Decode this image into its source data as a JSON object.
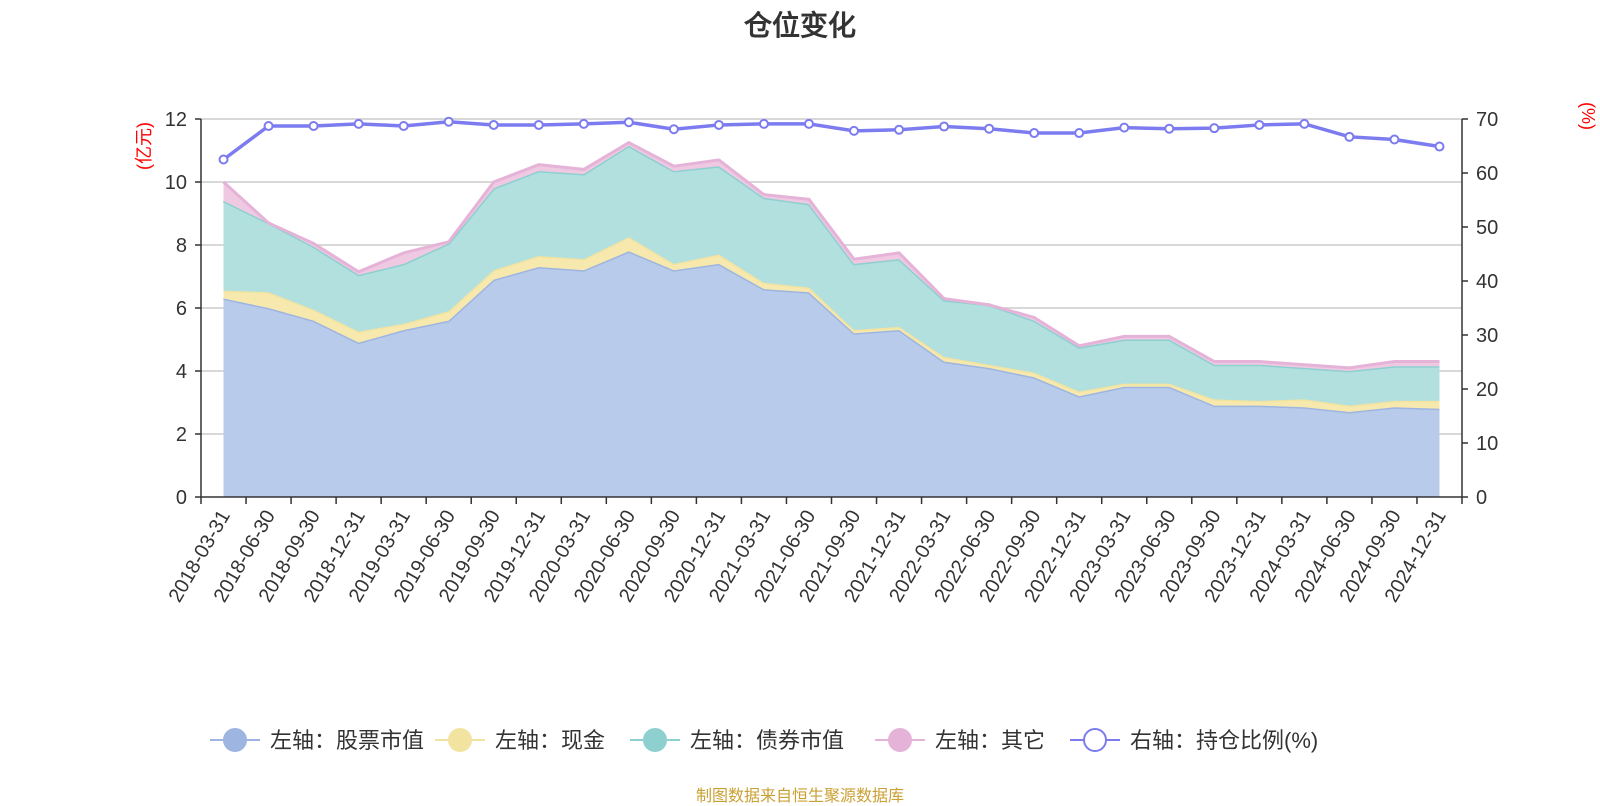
{
  "chart_data": {
    "type": "area",
    "title": "仓位变化",
    "source_note": "制图数据来自恒生聚源数据库",
    "left_axis": {
      "unit_label": "(亿元)",
      "range": [
        0,
        12
      ],
      "ticks": [
        0,
        2,
        4,
        6,
        8,
        10,
        12
      ]
    },
    "right_axis": {
      "unit_label": "(%)",
      "range": [
        0,
        70
      ],
      "ticks": [
        0,
        10,
        20,
        30,
        40,
        50,
        60,
        70
      ]
    },
    "categories": [
      "2018-03-31",
      "2018-06-30",
      "2018-09-30",
      "2018-12-31",
      "2019-03-31",
      "2019-06-30",
      "2019-09-30",
      "2019-12-31",
      "2020-03-31",
      "2020-06-30",
      "2020-09-30",
      "2020-12-31",
      "2021-03-31",
      "2021-06-30",
      "2021-09-30",
      "2021-12-31",
      "2022-03-31",
      "2022-06-30",
      "2022-09-30",
      "2022-12-31",
      "2023-03-31",
      "2023-06-30",
      "2023-09-30",
      "2023-12-31",
      "2024-03-31",
      "2024-06-30",
      "2024-09-30",
      "2024-12-31"
    ],
    "stacked_series": [
      {
        "name": "左轴：股票市值",
        "axis": "left",
        "color": "#9db5e0",
        "fill": "#b8cbea",
        "values": [
          6.3,
          6.0,
          5.6,
          4.9,
          5.3,
          5.6,
          6.9,
          7.3,
          7.2,
          7.8,
          7.2,
          7.4,
          6.6,
          6.5,
          5.2,
          5.3,
          4.3,
          4.1,
          3.8,
          3.2,
          3.5,
          3.5,
          2.9,
          2.9,
          2.85,
          2.7,
          2.85,
          2.8
        ]
      },
      {
        "name": "左轴：现金",
        "axis": "left",
        "color": "#f3e3a0",
        "fill": "#f7e9ad",
        "values": [
          0.25,
          0.5,
          0.35,
          0.35,
          0.2,
          0.3,
          0.3,
          0.35,
          0.35,
          0.45,
          0.2,
          0.3,
          0.2,
          0.15,
          0.1,
          0.1,
          0.15,
          0.1,
          0.15,
          0.15,
          0.1,
          0.1,
          0.2,
          0.15,
          0.25,
          0.2,
          0.2,
          0.25
        ]
      },
      {
        "name": "左轴：债券市值",
        "axis": "left",
        "color": "#8ecfd0",
        "fill": "#b2e0df",
        "values": [
          2.85,
          2.2,
          2.0,
          1.8,
          1.9,
          2.15,
          2.6,
          2.7,
          2.7,
          2.9,
          2.95,
          2.8,
          2.7,
          2.65,
          2.1,
          2.15,
          1.8,
          1.9,
          1.65,
          1.4,
          1.4,
          1.4,
          1.1,
          1.15,
          1.0,
          1.1,
          1.1,
          1.1
        ]
      },
      {
        "name": "左轴：其它",
        "axis": "left",
        "color": "#e6b3d8",
        "fill": "#efc9e2",
        "values": [
          0.6,
          0.0,
          0.1,
          0.1,
          0.35,
          0.05,
          0.2,
          0.2,
          0.15,
          0.1,
          0.15,
          0.2,
          0.1,
          0.15,
          0.15,
          0.2,
          0.05,
          0.0,
          0.1,
          0.05,
          0.1,
          0.1,
          0.1,
          0.1,
          0.1,
          0.1,
          0.15,
          0.15
        ]
      }
    ],
    "line_series": {
      "name": "右轴：持仓比例(%)",
      "axis": "right",
      "color": "#7c7cf0",
      "values": [
        62.5,
        68.7,
        68.7,
        69.1,
        68.7,
        69.5,
        68.9,
        68.9,
        69.1,
        69.4,
        68.1,
        68.9,
        69.1,
        69.1,
        67.8,
        68.0,
        68.6,
        68.2,
        67.4,
        67.4,
        68.4,
        68.2,
        68.3,
        68.9,
        69.1,
        66.7,
        66.2,
        64.9
      ]
    }
  }
}
